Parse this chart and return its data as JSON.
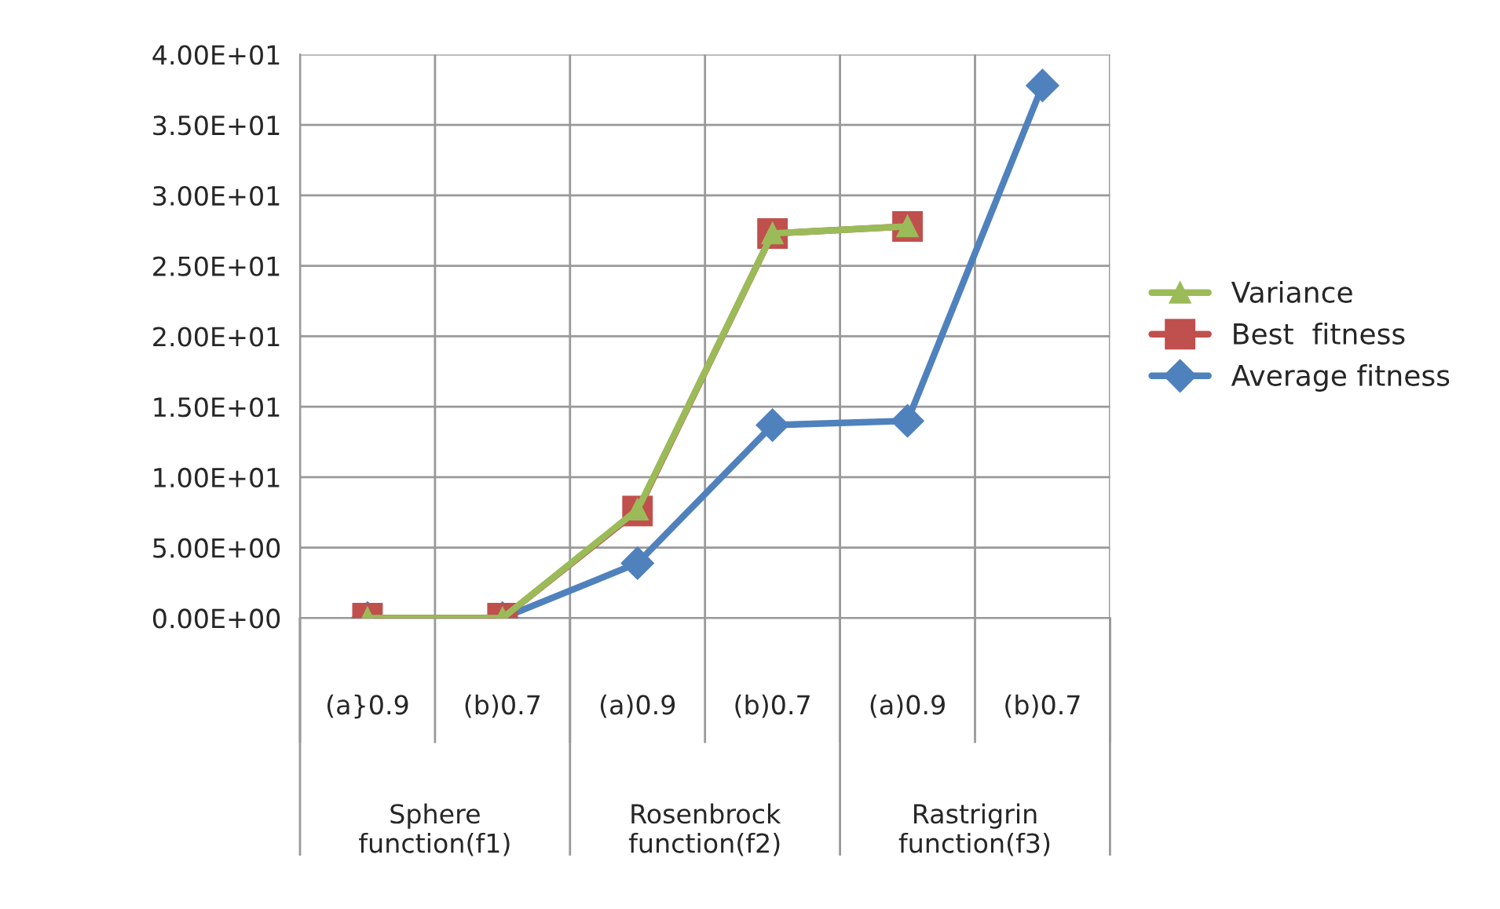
{
  "chart_data": {
    "type": "line",
    "categories": [
      "(a}0.9",
      "(b)0.7",
      "(a)0.9",
      "(b)0.7",
      "(a)0.9",
      "(b)0.7"
    ],
    "annotations": [
      "Sphere function(f1)",
      "Rosenbrock function(f2)",
      "Rastrigrin function(f3)"
    ],
    "series": [
      {
        "name": "Variance",
        "color": "#9bbb59",
        "marker": "triangle",
        "values": [
          0,
          0,
          7.7,
          27.3,
          27.8,
          null
        ]
      },
      {
        "name": "Best  fitness",
        "color": "#c0504d",
        "marker": "square",
        "values": [
          0,
          0,
          7.6,
          27.3,
          27.8,
          null
        ]
      },
      {
        "name": "Average fitness",
        "color": "#4f81bd",
        "marker": "diamond",
        "values": [
          0,
          0,
          3.9,
          13.7,
          14.0,
          37.8
        ]
      }
    ],
    "ylim": [
      0,
      40
    ],
    "yticks": [
      {
        "value": 0,
        "label": "0.00E+00"
      },
      {
        "value": 5,
        "label": "5.00E+00"
      },
      {
        "value": 10,
        "label": "1.00E+01"
      },
      {
        "value": 15,
        "label": "1.50E+01"
      },
      {
        "value": 20,
        "label": "2.00E+01"
      },
      {
        "value": 25,
        "label": "2.50E+01"
      },
      {
        "value": 30,
        "label": "3.00E+01"
      },
      {
        "value": 35,
        "label": "3.50E+01"
      },
      {
        "value": 40,
        "label": "4.00E+01"
      }
    ],
    "grid": true,
    "legend": "right"
  }
}
